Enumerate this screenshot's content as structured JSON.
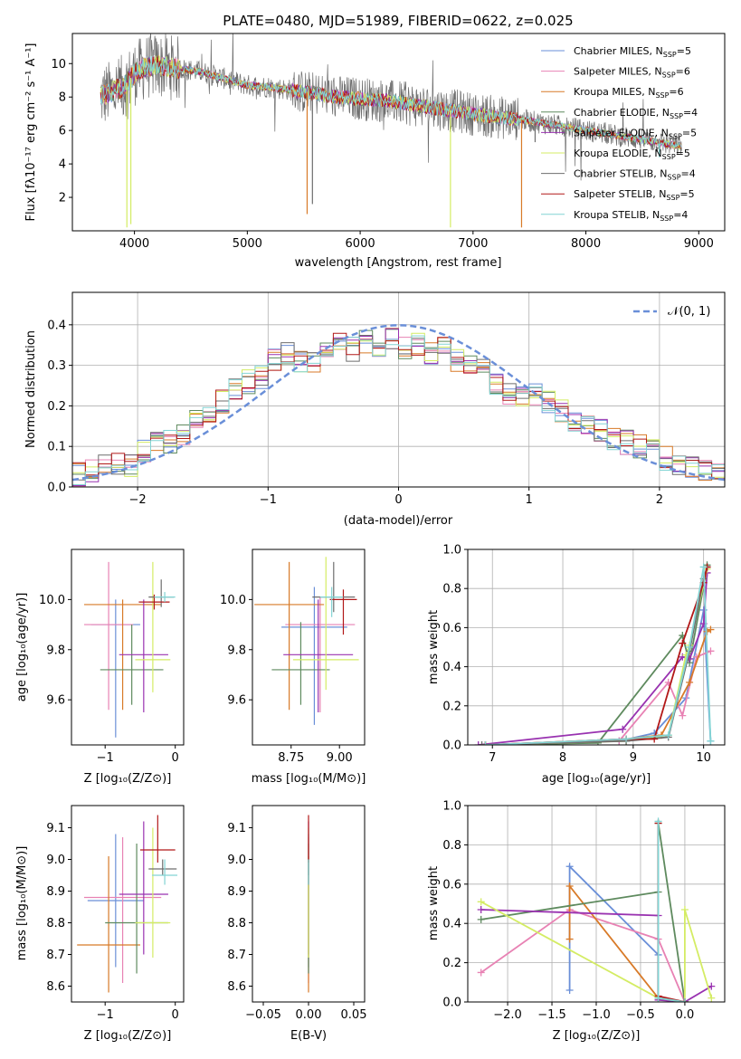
{
  "palette": [
    "#6a8fd8",
    "#e882b4",
    "#d87a28",
    "#5e8a5e",
    "#9932b0",
    "#d4ec64",
    "#6e6e6e",
    "#b21818",
    "#82d4d4"
  ],
  "chart_data": [
    {
      "id": "spectrum",
      "type": "line",
      "title": "PLATE=0480, MJD=51989, FIBERID=0622, z=0.025",
      "xlabel": "wavelength [Angstrom, rest frame]",
      "ylabel": "Flux [fλ10⁻¹⁷ erg cm⁻² s⁻¹ A⁻¹]",
      "xlim": [
        3450,
        9230
      ],
      "ylim": [
        0,
        11.8
      ],
      "xticks": [
        "4000",
        "5000",
        "6000",
        "7000",
        "8000",
        "9000"
      ],
      "yticks": [
        "2",
        "4",
        "6",
        "8",
        "10"
      ],
      "grid": false,
      "legend_position": "top-right",
      "series": [
        {
          "name": "Chabrier MILES, N",
          "sub": "SSP",
          "suffix": "=5"
        },
        {
          "name": "Salpeter MILES, N",
          "sub": "SSP",
          "suffix": "=6"
        },
        {
          "name": "Kroupa MILES, N",
          "sub": "SSP",
          "suffix": "=6"
        },
        {
          "name": "Chabrier ELODIE, N",
          "sub": "SSP",
          "suffix": "=4"
        },
        {
          "name": "Salpeter ELODIE, N",
          "sub": "SSP",
          "suffix": "=5"
        },
        {
          "name": "Kroupa ELODIE, N",
          "sub": "SSP",
          "suffix": "=5"
        },
        {
          "name": "Chabrier STELIB, N",
          "sub": "SSP",
          "suffix": "=4"
        },
        {
          "name": "Salpeter STELIB, N",
          "sub": "SSP",
          "suffix": "=5"
        },
        {
          "name": "Kroupa STELIB, N",
          "sub": "SSP",
          "suffix": "=4"
        }
      ],
      "continuum": {
        "x": [
          3700,
          3900,
          4000,
          4100,
          4200,
          4400,
          4600,
          4800,
          5000,
          5200,
          5400,
          5600,
          5800,
          6000,
          6200,
          6400,
          6600,
          6800,
          7000,
          7200,
          7400,
          7600,
          7800,
          8000,
          8200,
          8400,
          8600,
          8800
        ],
        "y": [
          8.0,
          8.6,
          9.4,
          9.8,
          9.9,
          9.7,
          9.5,
          9.1,
          8.7,
          8.6,
          8.4,
          8.2,
          8.0,
          7.9,
          7.8,
          7.6,
          7.4,
          7.2,
          7.0,
          6.8,
          6.7,
          6.5,
          6.3,
          6.1,
          5.9,
          5.7,
          5.5,
          5.3
        ]
      },
      "absorption_dips": [
        [
          3933,
          0.2
        ],
        [
          3968,
          0.4
        ],
        [
          5530,
          1.0
        ],
        [
          5577,
          1.6
        ],
        [
          6800,
          0.2
        ],
        [
          7430,
          0.2
        ],
        [
          7550,
          5.3
        ],
        [
          8500,
          5.2
        ],
        [
          8650,
          4.4
        ]
      ]
    },
    {
      "id": "residuals",
      "type": "histogram",
      "xlabel": "(data-model)/error",
      "ylabel": "Normed distribution",
      "xlim": [
        -2.5,
        2.5
      ],
      "ylim": [
        0,
        0.48
      ],
      "xticks": [
        "−2",
        "−1",
        "0",
        "1",
        "2"
      ],
      "yticks": [
        "0.0",
        "0.1",
        "0.2",
        "0.3",
        "0.4"
      ],
      "grid": true,
      "legend_position": "top-right",
      "reference_curve": {
        "name": "𝒩(0, 1)",
        "mean": 0,
        "std": 1
      },
      "bin_width": 0.1,
      "centers": [
        -2.45,
        -2.35,
        -2.25,
        -2.15,
        -2.05,
        -1.95,
        -1.85,
        -1.75,
        -1.65,
        -1.55,
        -1.45,
        -1.35,
        -1.25,
        -1.15,
        -1.05,
        -0.95,
        -0.85,
        -0.75,
        -0.65,
        -0.55,
        -0.45,
        -0.35,
        -0.25,
        -0.15,
        -0.05,
        0.05,
        0.15,
        0.25,
        0.35,
        0.45,
        0.55,
        0.65,
        0.75,
        0.85,
        0.95,
        1.05,
        1.15,
        1.25,
        1.35,
        1.45,
        1.55,
        1.65,
        1.75,
        1.85,
        1.95,
        2.05,
        2.15,
        2.25,
        2.35,
        2.45
      ],
      "base_values": [
        0.03,
        0.04,
        0.05,
        0.06,
        0.05,
        0.09,
        0.12,
        0.11,
        0.13,
        0.16,
        0.18,
        0.21,
        0.24,
        0.26,
        0.27,
        0.31,
        0.33,
        0.31,
        0.31,
        0.34,
        0.35,
        0.34,
        0.36,
        0.35,
        0.37,
        0.34,
        0.35,
        0.33,
        0.34,
        0.31,
        0.3,
        0.29,
        0.25,
        0.23,
        0.22,
        0.23,
        0.21,
        0.19,
        0.16,
        0.15,
        0.14,
        0.12,
        0.11,
        0.1,
        0.09,
        0.07,
        0.06,
        0.05,
        0.04,
        0.04
      ]
    },
    {
      "id": "z-vs-age",
      "type": "errorbar",
      "xlabel": "Z [log₁₀(Z/Z⊙)]",
      "ylabel": "age  [log₁₀(age/yr)]",
      "xlim": [
        -1.48,
        0.12
      ],
      "ylim": [
        9.42,
        10.2
      ],
      "xticks": [
        "−1",
        "0"
      ],
      "yticks": [
        "9.6",
        "9.8",
        "10.0"
      ],
      "points": [
        {
          "x": -0.85,
          "y": 9.9,
          "xerr": 0.35,
          "ylow": 9.45,
          "yhigh": 10.0
        },
        {
          "x": -0.95,
          "y": 9.9,
          "xerr": 0.35,
          "ylow": 9.56,
          "yhigh": 10.15
        },
        {
          "x": -0.75,
          "y": 9.98,
          "xerr": 0.55,
          "ylow": 9.56,
          "yhigh": 10.0
        },
        {
          "x": -0.62,
          "y": 9.72,
          "xerr": 0.45,
          "ylow": 9.58,
          "yhigh": 9.9
        },
        {
          "x": -0.45,
          "y": 9.78,
          "xerr": 0.35,
          "ylow": 9.55,
          "yhigh": 10.0
        },
        {
          "x": -0.32,
          "y": 9.76,
          "xerr": 0.25,
          "ylow": 9.63,
          "yhigh": 10.15
        },
        {
          "x": -0.2,
          "y": 10.01,
          "xerr": 0.18,
          "ylow": 9.97,
          "yhigh": 10.08
        },
        {
          "x": -0.3,
          "y": 9.99,
          "xerr": 0.22,
          "ylow": 9.96,
          "yhigh": 10.02
        },
        {
          "x": -0.15,
          "y": 10.01,
          "xerr": 0.15,
          "ylow": 9.99,
          "yhigh": 10.03
        }
      ]
    },
    {
      "id": "mass-vs-age",
      "type": "errorbar",
      "xlabel": "mass [log₁₀(M/M⊙)]",
      "ylabel": "",
      "xlim": [
        8.55,
        9.13
      ],
      "ylim": [
        9.42,
        10.2
      ],
      "xticks": [
        "8.75",
        "9.00"
      ],
      "yticks": [
        "9.6",
        "9.8",
        "10.0"
      ],
      "points": [
        {
          "x": 8.87,
          "y": 9.89,
          "xerr": 0.17,
          "ylow": 9.5,
          "yhigh": 10.05
        },
        {
          "x": 8.9,
          "y": 9.9,
          "xerr": 0.18,
          "ylow": 9.55,
          "yhigh": 10.01
        },
        {
          "x": 8.74,
          "y": 9.98,
          "xerr": 0.18,
          "ylow": 9.56,
          "yhigh": 10.15
        },
        {
          "x": 8.8,
          "y": 9.72,
          "xerr": 0.15,
          "ylow": 9.58,
          "yhigh": 9.91
        },
        {
          "x": 8.89,
          "y": 9.78,
          "xerr": 0.18,
          "ylow": 9.55,
          "yhigh": 10.0
        },
        {
          "x": 8.93,
          "y": 9.76,
          "xerr": 0.17,
          "ylow": 9.64,
          "yhigh": 10.17
        },
        {
          "x": 8.97,
          "y": 10.01,
          "xerr": 0.11,
          "ylow": 9.95,
          "yhigh": 10.15
        },
        {
          "x": 9.02,
          "y": 10.0,
          "xerr": 0.07,
          "ylow": 9.86,
          "yhigh": 10.04
        },
        {
          "x": 8.96,
          "y": 10.01,
          "xerr": 0.06,
          "ylow": 9.93,
          "yhigh": 10.05
        }
      ]
    },
    {
      "id": "weight-vs-age",
      "type": "line",
      "xlabel": "age  [log₁₀(age/yr)]",
      "ylabel": "mass weight",
      "xlim": [
        6.65,
        10.3
      ],
      "ylim": [
        0,
        1.0
      ],
      "xticks": [
        "7",
        "8",
        "9",
        "10"
      ],
      "yticks": [
        "0.0",
        "0.2",
        "0.4",
        "0.6",
        "0.8",
        "1.0"
      ],
      "grid": true,
      "series": [
        {
          "x": [
            6.9,
            8.8,
            9.3,
            9.75,
            10.0,
            10.1
          ],
          "y": [
            0.0,
            0.02,
            0.06,
            0.24,
            0.69,
            0.02
          ]
        },
        {
          "x": [
            6.9,
            8.8,
            9.5,
            9.7,
            9.9,
            10.1
          ],
          "y": [
            0.0,
            0.02,
            0.32,
            0.15,
            0.45,
            0.48
          ]
        },
        {
          "x": [
            6.9,
            8.9,
            9.4,
            9.8,
            10.05,
            10.1
          ],
          "y": [
            0.0,
            0.03,
            0.05,
            0.32,
            0.58,
            0.59
          ]
        },
        {
          "x": [
            6.9,
            8.5,
            9.7,
            9.8,
            10.05,
            10.05
          ],
          "y": [
            0.0,
            0.01,
            0.56,
            0.42,
            0.91,
            0.92
          ]
        },
        {
          "x": [
            6.8,
            8.85,
            9.7,
            9.8,
            10.0,
            10.05
          ],
          "y": [
            0.0,
            0.08,
            0.45,
            0.44,
            0.62,
            0.88
          ]
        },
        {
          "x": [
            6.9,
            8.9,
            9.5,
            9.75,
            9.8,
            10.05
          ],
          "y": [
            0.0,
            0.02,
            0.05,
            0.46,
            0.51,
            0.9
          ]
        },
        {
          "x": [
            6.85,
            8.9,
            9.5,
            9.8,
            10.0,
            10.05
          ],
          "y": [
            0.0,
            0.02,
            0.04,
            0.48,
            0.85,
            0.91
          ]
        },
        {
          "x": [
            6.9,
            8.9,
            9.3,
            9.7,
            10.0,
            10.05
          ],
          "y": [
            0.0,
            0.03,
            0.03,
            0.52,
            0.83,
            0.91
          ]
        },
        {
          "x": [
            6.9,
            8.9,
            9.5,
            9.8,
            10.0,
            10.1
          ],
          "y": [
            0.0,
            0.03,
            0.05,
            0.5,
            0.91,
            0.02
          ]
        }
      ]
    },
    {
      "id": "z-vs-mass",
      "type": "errorbar",
      "xlabel": "Z [log₁₀(Z/Z⊙)]",
      "ylabel": "mass [log₁₀(M/M⊙)]",
      "xlim": [
        -1.48,
        0.12
      ],
      "ylim": [
        8.55,
        9.17
      ],
      "xticks": [
        "−1",
        "0"
      ],
      "yticks": [
        "8.6",
        "8.7",
        "8.8",
        "8.9",
        "9.0",
        "9.1"
      ],
      "points": [
        {
          "x": -0.85,
          "y": 8.87,
          "xerr": 0.4,
          "ylow": 8.66,
          "yhigh": 9.08
        },
        {
          "x": -0.75,
          "y": 8.88,
          "xerr": 0.55,
          "ylow": 8.61,
          "yhigh": 9.07
        },
        {
          "x": -0.95,
          "y": 8.73,
          "xerr": 0.45,
          "ylow": 8.58,
          "yhigh": 9.01
        },
        {
          "x": -0.55,
          "y": 8.8,
          "xerr": 0.45,
          "ylow": 8.64,
          "yhigh": 9.05
        },
        {
          "x": -0.45,
          "y": 8.89,
          "xerr": 0.35,
          "ylow": 8.7,
          "yhigh": 9.12
        },
        {
          "x": -0.32,
          "y": 8.8,
          "xerr": 0.25,
          "ylow": 8.69,
          "yhigh": 9.1
        },
        {
          "x": -0.18,
          "y": 8.97,
          "xerr": 0.2,
          "ylow": 8.95,
          "yhigh": 9.0
        },
        {
          "x": -0.25,
          "y": 9.03,
          "xerr": 0.25,
          "ylow": 8.99,
          "yhigh": 9.14
        },
        {
          "x": -0.15,
          "y": 8.95,
          "xerr": 0.18,
          "ylow": 8.92,
          "yhigh": 9.0
        }
      ]
    },
    {
      "id": "ebv",
      "type": "errorbar",
      "xlabel": "E(B-V)",
      "ylabel": "",
      "xlim": [
        -0.062,
        0.062
      ],
      "ylim": [
        8.55,
        9.17
      ],
      "xticks": [
        "−0.05",
        "0.00",
        "0.05"
      ],
      "yticks": [
        "8.6",
        "8.7",
        "8.8",
        "8.9",
        "9.0",
        "9.1"
      ],
      "points": [
        {
          "x": 0.0,
          "y": 8.87,
          "xerr": 0,
          "ylow": 8.66,
          "yhigh": 9.08
        },
        {
          "x": 0.0,
          "y": 8.88,
          "xerr": 0,
          "ylow": 8.61,
          "yhigh": 9.07
        },
        {
          "x": 0.0,
          "y": 8.73,
          "xerr": 0,
          "ylow": 8.58,
          "yhigh": 9.01
        },
        {
          "x": 0.0,
          "y": 8.8,
          "xerr": 0,
          "ylow": 8.64,
          "yhigh": 9.05
        },
        {
          "x": 0.0,
          "y": 8.89,
          "xerr": 0,
          "ylow": 8.7,
          "yhigh": 9.12
        },
        {
          "x": 0.0,
          "y": 8.8,
          "xerr": 0,
          "ylow": 8.69,
          "yhigh": 9.1
        },
        {
          "x": 0.0,
          "y": 8.97,
          "xerr": 0,
          "ylow": 8.95,
          "yhigh": 9.0
        },
        {
          "x": 0.0,
          "y": 9.03,
          "xerr": 0,
          "ylow": 8.99,
          "yhigh": 9.14
        },
        {
          "x": 0.0,
          "y": 8.95,
          "xerr": 0,
          "ylow": 8.92,
          "yhigh": 9.0
        }
      ]
    },
    {
      "id": "weight-vs-z",
      "type": "line",
      "xlabel": "Z [log₁₀(Z/Z⊙)]",
      "ylabel": "mass weight",
      "xlim": [
        -2.45,
        0.45
      ],
      "ylim": [
        0,
        1.0
      ],
      "xticks": [
        "−2.0",
        "−1.5",
        "−1.0",
        "−0.5",
        "0.0"
      ],
      "yticks": [
        "0.0",
        "0.2",
        "0.4",
        "0.6",
        "0.8",
        "1.0"
      ],
      "grid": true,
      "series": [
        {
          "x": [
            -1.3,
            -1.3,
            -0.3,
            -0.3,
            0.0
          ],
          "y": [
            0.06,
            0.69,
            0.24,
            0.02,
            0.0
          ]
        },
        {
          "x": [
            -2.3,
            -1.3,
            -0.3,
            0.0
          ],
          "y": [
            0.15,
            0.47,
            0.32,
            0.0
          ]
        },
        {
          "x": [
            -1.3,
            -1.3,
            -0.3,
            0.0
          ],
          "y": [
            0.32,
            0.59,
            0.02,
            0.0
          ]
        },
        {
          "x": [
            -2.3,
            -0.3,
            -0.3,
            0.0
          ],
          "y": [
            0.42,
            0.56,
            0.91,
            0.0
          ]
        },
        {
          "x": [
            -2.3,
            -0.3,
            -0.3,
            0.0,
            0.3
          ],
          "y": [
            0.47,
            0.44,
            0.01,
            0.0,
            0.08
          ]
        },
        {
          "x": [
            -2.3,
            -0.3,
            0.0,
            0.0,
            0.3
          ],
          "y": [
            0.51,
            0.02,
            0.0,
            0.47,
            0.02
          ]
        },
        {
          "x": [
            -0.3,
            -0.3,
            0.0
          ],
          "y": [
            0.91,
            0.02,
            0.0
          ]
        },
        {
          "x": [
            -0.3,
            -0.3,
            0.0
          ],
          "y": [
            0.91,
            0.03,
            0.0
          ]
        },
        {
          "x": [
            -0.3,
            -0.3,
            0.0
          ],
          "y": [
            0.92,
            0.02,
            0.0
          ]
        }
      ]
    }
  ]
}
